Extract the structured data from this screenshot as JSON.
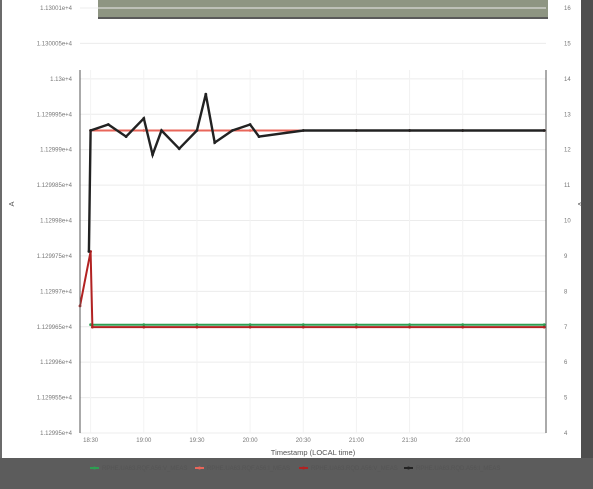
{
  "chart_data": {
    "type": "line",
    "title": "",
    "xlabel": "Timestamp (LOCAL time)",
    "ylabel_left": "A",
    "ylabel_right": "V",
    "x_ticks": [
      "18:30",
      "19:00",
      "19:30",
      "20:00",
      "20:30",
      "21:00",
      "21:30",
      "22:00"
    ],
    "xlim": [
      "18:24",
      "22:47"
    ],
    "y_left_ticks": [
      "1.13001e+4",
      "1.130005e+4",
      "1.13e+4",
      "1.129995e+4",
      "1.12999e+4",
      "1.129985e+4",
      "1.12998e+4",
      "1.129975e+4",
      "1.12997e+4",
      "1.129965e+4",
      "1.12996e+4",
      "1.129955e+4",
      "1.12995e+4"
    ],
    "y_left_lim": [
      11299.5,
      11300.1
    ],
    "y_right_ticks": [
      "16",
      "15",
      "14",
      "13",
      "12",
      "11",
      "10",
      "9",
      "8",
      "7",
      "6",
      "5",
      "4"
    ],
    "y_right_lim": [
      4,
      16
    ],
    "grid": true,
    "legend_position": "bottom",
    "series": [
      {
        "name": "RPHE.UA63.RQF.A56:V_MEAS",
        "axis": "right",
        "color": "#2e9e52",
        "x": [
          "18:30",
          "19:00",
          "19:30",
          "20:00",
          "20:30",
          "21:00",
          "21:30",
          "22:00",
          "22:46"
        ],
        "values": [
          7.58,
          7.58,
          7.58,
          7.58,
          7.58,
          7.58,
          7.58,
          7.58,
          7.58
        ]
      },
      {
        "name": "RPHE.UA63.RQF.A56:I_MEAS",
        "axis": "left",
        "color": "#e8665a",
        "x": [
          "18:30",
          "19:00",
          "19:30",
          "20:00",
          "20:30",
          "21:00",
          "21:30",
          "22:00",
          "22:46"
        ],
        "values": [
          11300.0,
          11300.0,
          11300.0,
          11300.0,
          11300.0,
          11300.0,
          11300.0,
          11300.0,
          11300.0
        ]
      },
      {
        "name": "RPHE.UA63.RQD.A56:V_MEAS",
        "axis": "right",
        "color": "#b22222",
        "x": [
          "18:24",
          "18:30",
          "18:31",
          "19:00",
          "19:30",
          "20:00",
          "20:30",
          "21:00",
          "21:30",
          "22:00",
          "22:46"
        ],
        "values": [
          8.2,
          10.0,
          7.5,
          7.5,
          7.5,
          7.5,
          7.5,
          7.5,
          7.5,
          7.5,
          7.5
        ]
      },
      {
        "name": "RPHE.UA63.RQD.A56:I_MEAS",
        "axis": "left",
        "color": "#222222",
        "x": [
          "18:29",
          "18:30",
          "18:40",
          "18:50",
          "19:00",
          "19:05",
          "19:10",
          "19:20",
          "19:30",
          "19:35",
          "19:40",
          "19:50",
          "20:00",
          "20:05",
          "20:30",
          "21:00",
          "21:30",
          "22:00",
          "22:46"
        ],
        "values": [
          11299.8,
          11300.0,
          11300.01,
          11299.99,
          11300.02,
          11299.96,
          11300.0,
          11299.97,
          11300.0,
          11300.06,
          11299.98,
          11300.0,
          11300.01,
          11299.99,
          11300.0,
          11300.0,
          11300.0,
          11300.0,
          11300.0
        ]
      }
    ]
  }
}
